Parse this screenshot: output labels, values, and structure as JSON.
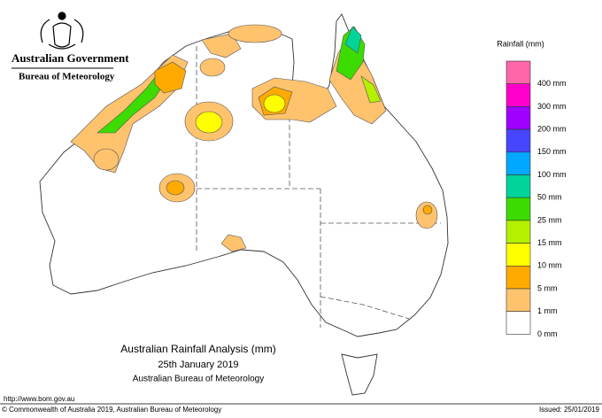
{
  "header": {
    "agency": "Australian Government",
    "bureau": "Bureau of Meteorology"
  },
  "legend": {
    "title": "Rainfall (mm)",
    "colors": [
      "#ff66aa",
      "#ff00cc",
      "#a000ff",
      "#4646ff",
      "#00a8ff",
      "#00d49a",
      "#3cdc00",
      "#b4f000",
      "#ffff00",
      "#ffaa00",
      "#ffc36e",
      "#ffffff"
    ],
    "labels": [
      "400 mm",
      "300 mm",
      "200 mm",
      "150 mm",
      "100 mm",
      "50 mm",
      "25 mm",
      "15 mm",
      "10 mm",
      "5 mm",
      "1 mm",
      "0 mm"
    ]
  },
  "map_title": [
    "Australian Rainfall Analysis (mm)",
    "25th January 2019",
    "Australian Bureau of Meteorology"
  ],
  "footer": {
    "url": "http://www.bom.gov.au",
    "copyright": "© Commonwealth of Australia 2019, Australian Bureau of Meteorology",
    "issued": "Issued: 25/01/2019"
  }
}
